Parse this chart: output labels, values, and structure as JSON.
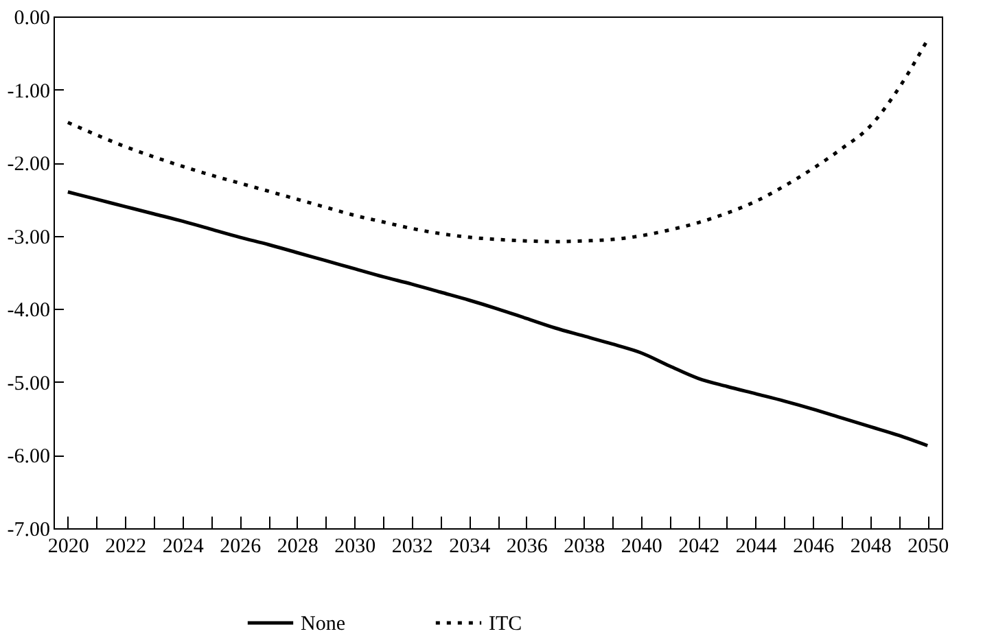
{
  "chart_data": {
    "type": "line",
    "categories": [
      "2020",
      null,
      "2022",
      null,
      "2024",
      null,
      "2026",
      null,
      "2028",
      null,
      "2030",
      null,
      "2032",
      null,
      "2034",
      null,
      "2036",
      null,
      "2038",
      null,
      "2040",
      null,
      "2042",
      null,
      "2044",
      null,
      "2046",
      null,
      "2048",
      null,
      "2050"
    ],
    "series": [
      {
        "name": "None",
        "color": "#000000",
        "line_style": "solid",
        "values": [
          -2.4,
          -2.5,
          -2.6,
          -2.7,
          -2.8,
          -2.91,
          -3.02,
          -3.12,
          -3.23,
          -3.34,
          -3.45,
          -3.56,
          -3.66,
          -3.77,
          -3.88,
          -4.0,
          -4.13,
          -4.26,
          -4.37,
          -4.48,
          -4.6,
          -4.78,
          -4.95,
          -5.06,
          -5.16,
          -5.26,
          -5.37,
          -5.49,
          -5.61,
          -5.73,
          -5.87
        ]
      },
      {
        "name": "ITC",
        "color": "#000000",
        "line_style": "dotted",
        "values": [
          -1.45,
          -1.62,
          -1.78,
          -1.92,
          -2.05,
          -2.17,
          -2.28,
          -2.39,
          -2.5,
          -2.61,
          -2.72,
          -2.81,
          -2.9,
          -2.97,
          -3.02,
          -3.05,
          -3.07,
          -3.08,
          -3.07,
          -3.05,
          -3.0,
          -2.92,
          -2.82,
          -2.69,
          -2.53,
          -2.32,
          -2.08,
          -1.81,
          -1.5,
          -0.98,
          -0.32
        ]
      }
    ],
    "ylim": [
      -7,
      0
    ],
    "yticks": [
      {
        "value": 0,
        "label": "0.00"
      },
      {
        "value": -1,
        "label": "-1.00"
      },
      {
        "value": -2,
        "label": "-2.00"
      },
      {
        "value": -3,
        "label": "-3.00"
      },
      {
        "value": -4,
        "label": "-4.00"
      },
      {
        "value": -5,
        "label": "-5.00"
      },
      {
        "value": -6,
        "label": "-6.00"
      },
      {
        "value": -7,
        "label": "-7.00"
      }
    ],
    "grid": false,
    "legend": "bottom"
  }
}
